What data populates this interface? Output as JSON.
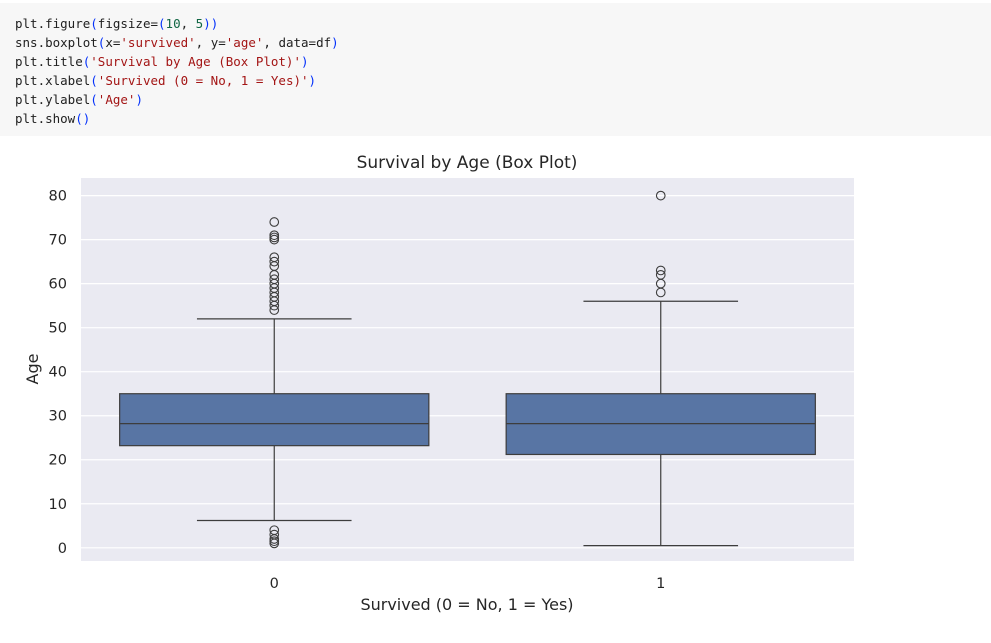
{
  "code_cell": {
    "lines": [
      [
        {
          "t": "plt.figure",
          "c": "fn"
        },
        {
          "t": "(",
          "c": "paren"
        },
        {
          "t": "figsize=",
          "c": "punc"
        },
        {
          "t": "(",
          "c": "paren"
        },
        {
          "t": "10",
          "c": "num"
        },
        {
          "t": ", ",
          "c": "punc"
        },
        {
          "t": "5",
          "c": "num"
        },
        {
          "t": "))",
          "c": "paren"
        }
      ],
      [
        {
          "t": "sns.boxplot",
          "c": "fn"
        },
        {
          "t": "(",
          "c": "paren"
        },
        {
          "t": "x=",
          "c": "punc"
        },
        {
          "t": "'survived'",
          "c": "str"
        },
        {
          "t": ", y=",
          "c": "punc"
        },
        {
          "t": "'age'",
          "c": "str"
        },
        {
          "t": ", data=df",
          "c": "punc"
        },
        {
          "t": ")",
          "c": "paren"
        }
      ],
      [
        {
          "t": "plt.title",
          "c": "fn"
        },
        {
          "t": "(",
          "c": "paren"
        },
        {
          "t": "'Survival by Age (Box Plot)'",
          "c": "str"
        },
        {
          "t": ")",
          "c": "paren"
        }
      ],
      [
        {
          "t": "plt.xlabel",
          "c": "fn"
        },
        {
          "t": "(",
          "c": "paren"
        },
        {
          "t": "'Survived (0 = No, 1 = Yes)'",
          "c": "str"
        },
        {
          "t": ")",
          "c": "paren"
        }
      ],
      [
        {
          "t": "plt.ylabel",
          "c": "fn"
        },
        {
          "t": "(",
          "c": "paren"
        },
        {
          "t": "'Age'",
          "c": "str"
        },
        {
          "t": ")",
          "c": "paren"
        }
      ],
      [
        {
          "t": "plt.show",
          "c": "fn"
        },
        {
          "t": "()",
          "c": "paren"
        }
      ]
    ]
  },
  "chart_data": {
    "type": "box",
    "title": "Survival by Age (Box Plot)",
    "xlabel": "Survived (0 = No, 1 = Yes)",
    "ylabel": "Age",
    "categories": [
      "0",
      "1"
    ],
    "yticks": [
      0,
      10,
      20,
      30,
      40,
      50,
      60,
      70,
      80
    ],
    "ylim": [
      -3,
      84
    ],
    "grid": true,
    "box_color": "#5875a4",
    "boxes": [
      {
        "category": "0",
        "q1": 23.2,
        "median": 28.2,
        "q3": 35,
        "whisker_low": 6.2,
        "whisker_high": 52,
        "outliers": [
          74,
          71,
          70.5,
          70,
          66,
          65,
          64,
          62,
          61,
          60,
          59,
          58,
          57,
          56,
          55,
          54,
          4,
          3,
          2,
          1.5,
          1
        ]
      },
      {
        "category": "1",
        "q1": 21.2,
        "median": 28.2,
        "q3": 35,
        "whisker_low": 0.5,
        "whisker_high": 56,
        "outliers": [
          80,
          63,
          62,
          60,
          58
        ]
      }
    ]
  }
}
